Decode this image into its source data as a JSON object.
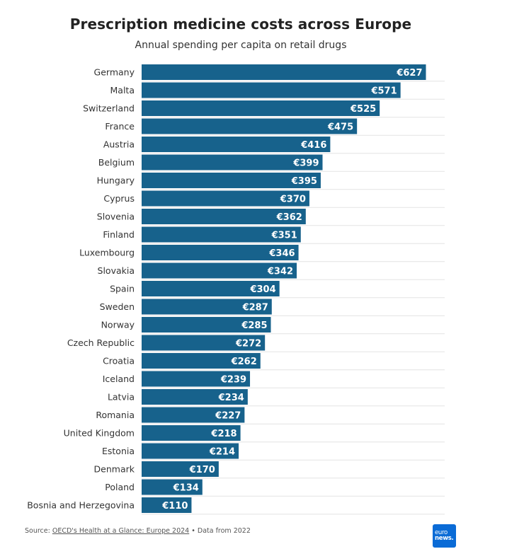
{
  "chart_data": {
    "type": "bar",
    "orientation": "horizontal",
    "title": "Prescription medicine costs across Europe",
    "subtitle": "Annual spending per capita on retail drugs",
    "currency_prefix": "€",
    "categories": [
      "Germany",
      "Malta",
      "Switzerland",
      "France",
      "Austria",
      "Belgium",
      "Hungary",
      "Cyprus",
      "Slovenia",
      "Finland",
      "Luxembourg",
      "Slovakia",
      "Spain",
      "Sweden",
      "Norway",
      "Czech Republic",
      "Croatia",
      "Iceland",
      "Latvia",
      "Romania",
      "United Kingdom",
      "Estonia",
      "Denmark",
      "Poland",
      "Bosnia and Herzegovina"
    ],
    "values": [
      627,
      571,
      525,
      475,
      416,
      399,
      395,
      370,
      362,
      351,
      346,
      342,
      304,
      287,
      285,
      272,
      262,
      239,
      234,
      227,
      218,
      214,
      170,
      134,
      110
    ],
    "xlim": [
      0,
      650
    ],
    "bar_color": "#17628c",
    "grid": true
  },
  "footer": {
    "source_prefix": "Source: ",
    "source_link": "OECD's Health at a Glance: Europe 2024",
    "source_suffix": " • Data from 2022"
  },
  "logo": {
    "line1": "euro",
    "line2": "news."
  },
  "colors": {
    "logo_bg": "#0a6bd6",
    "text": "#222222"
  }
}
